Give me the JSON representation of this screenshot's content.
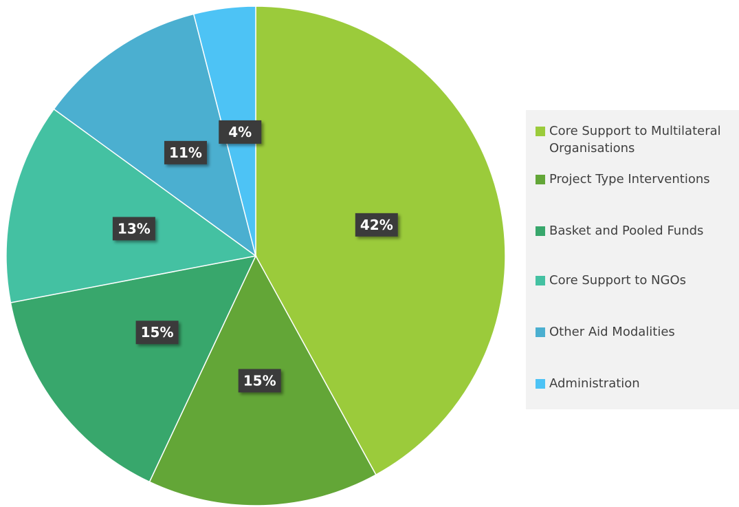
{
  "chart_data": {
    "type": "pie",
    "categories": [
      "Core Support to Multilateral Organisations",
      "Project Type Interventions",
      "Basket and Pooled Funds",
      "Core Support to NGOs",
      "Other Aid Modalities",
      "Administration"
    ],
    "values": [
      42,
      15,
      15,
      13,
      11,
      4
    ],
    "value_labels": [
      "42%",
      "15%",
      "15%",
      "13%",
      "11%",
      "4%"
    ],
    "colors": [
      "#9bcb3b",
      "#63a637",
      "#38a76c",
      "#44c1a2",
      "#4bafd0",
      "#4dc3f5"
    ],
    "legend": "right"
  }
}
